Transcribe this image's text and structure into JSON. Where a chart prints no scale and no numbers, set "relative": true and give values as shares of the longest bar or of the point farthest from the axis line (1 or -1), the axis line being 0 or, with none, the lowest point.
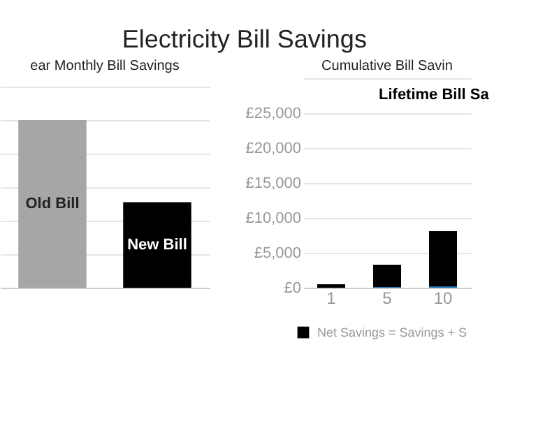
{
  "chart_data": [
    {
      "type": "bar",
      "title": "Electricity Bill Savings",
      "subtitle": "ear Monthly Bill Savings",
      "categories": [
        "Old Bill",
        "New Bill"
      ],
      "values": [
        1,
        0.51
      ],
      "colors": [
        "#a6a6a6",
        "#000000"
      ],
      "relative": true,
      "grid": "y",
      "tick_labels": false
    },
    {
      "type": "bar",
      "subtitle": "Cumulative Bill Savin",
      "categories": [
        "1",
        "5",
        "10"
      ],
      "stacked": true,
      "series": [
        {
          "color": "#1f77b4",
          "values": [
            0,
            100,
            200
          ]
        },
        {
          "name": "Net Savings = Savings + S",
          "color": "#000000",
          "values": [
            500,
            3200,
            7900
          ]
        }
      ],
      "ylim": [
        0,
        30000
      ],
      "yticks": [
        {
          "value": 0,
          "label": "£0"
        },
        {
          "value": 5000,
          "label": "£5,000"
        },
        {
          "value": 10000,
          "label": "£10,000"
        },
        {
          "value": 15000,
          "label": "£15,000"
        },
        {
          "value": 20000,
          "label": "£20,000"
        },
        {
          "value": 25000,
          "label": "£25,000"
        },
        {
          "value": 30000,
          "label": null
        }
      ],
      "grid": "y",
      "legend": "bottom",
      "annotations": [
        "Lifetime Bill Sa"
      ]
    }
  ]
}
